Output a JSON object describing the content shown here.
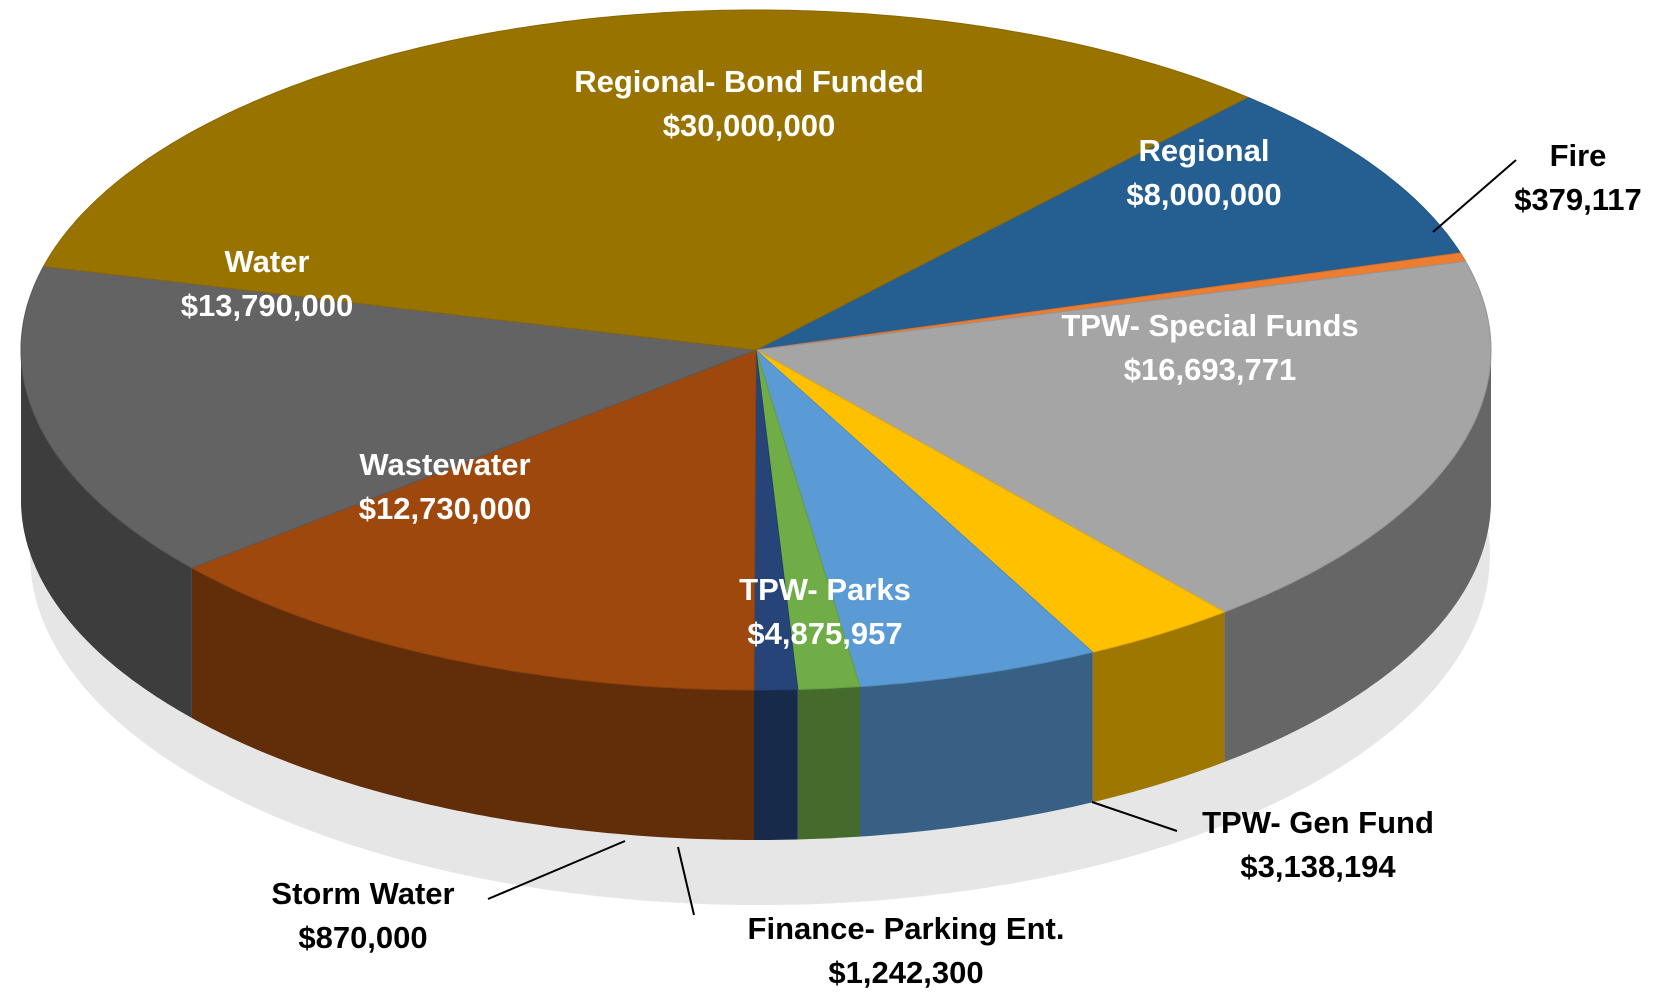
{
  "chart_data": {
    "type": "pie3d",
    "categories": [
      "Regional",
      "Fire",
      "TPW- Special Funds",
      "TPW- Gen Fund",
      "TPW- Parks",
      "Finance- Parking Ent.",
      "Storm Water",
      "Wastewater",
      "Water",
      "Regional- Bond Funded"
    ],
    "values": [
      8000000,
      379117,
      16693771,
      3138194,
      4875957,
      1242300,
      870000,
      12730000,
      13790000,
      30000000
    ],
    "value_labels": [
      "$8,000,000",
      "$379,117",
      "$16,693,771",
      "$3,138,194",
      "$4,875,957",
      "$1,242,300",
      "$870,000",
      "$12,730,000",
      "$13,790,000",
      "$30,000,000"
    ],
    "colors": [
      "#255e91",
      "#ed7d31",
      "#a5a5a5",
      "#ffc000",
      "#5b9bd5",
      "#70ad47",
      "#264478",
      "#9e480e",
      "#636363",
      "#997300"
    ]
  }
}
